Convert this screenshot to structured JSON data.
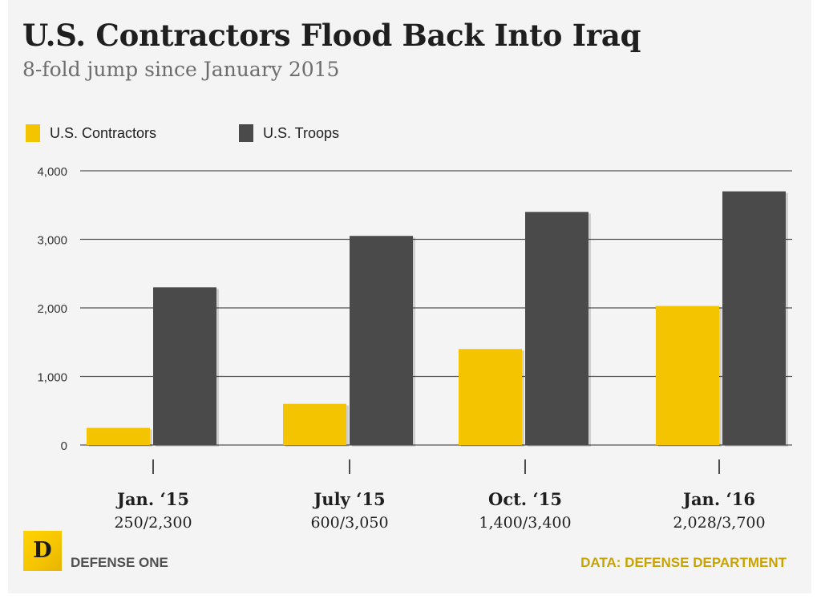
{
  "header": {
    "title": "U.S. Contractors Flood Back Into Iraq",
    "subtitle": "8-fold jump since January 2015"
  },
  "legend": [
    {
      "label": "U.S. Contractors",
      "color": "#f5c400"
    },
    {
      "label": "U.S. Troops",
      "color": "#4a4a4a"
    }
  ],
  "chart_data": {
    "type": "bar",
    "title": "U.S. Contractors Flood Back Into Iraq",
    "subtitle": "8-fold jump since January 2015",
    "xlabel": "",
    "ylabel": "",
    "ylim": [
      0,
      4000
    ],
    "yticks": [
      0,
      1000,
      2000,
      3000,
      4000
    ],
    "ytick_labels": [
      "0",
      "1,000",
      "2,000",
      "3,000",
      "4,000"
    ],
    "grid": true,
    "legend_position": "top-left",
    "categories": [
      "Jan. ‘15",
      "July ‘15",
      "Oct. ‘15",
      "Jan. ‘16"
    ],
    "category_sublabels": [
      "250/2,300",
      "600/3,050",
      "1,400/3,400",
      "2,028/3,700"
    ],
    "series": [
      {
        "name": "U.S. Contractors",
        "values": [
          250,
          600,
          1400,
          2028
        ],
        "color": "#f5c400"
      },
      {
        "name": "U.S. Troops",
        "values": [
          2300,
          3050,
          3400,
          3700
        ],
        "color": "#4a4a4a"
      }
    ]
  },
  "footer": {
    "logo_letter": "D",
    "brand": "DEFENSE ONE",
    "source": "DATA: DEFENSE DEPARTMENT"
  }
}
